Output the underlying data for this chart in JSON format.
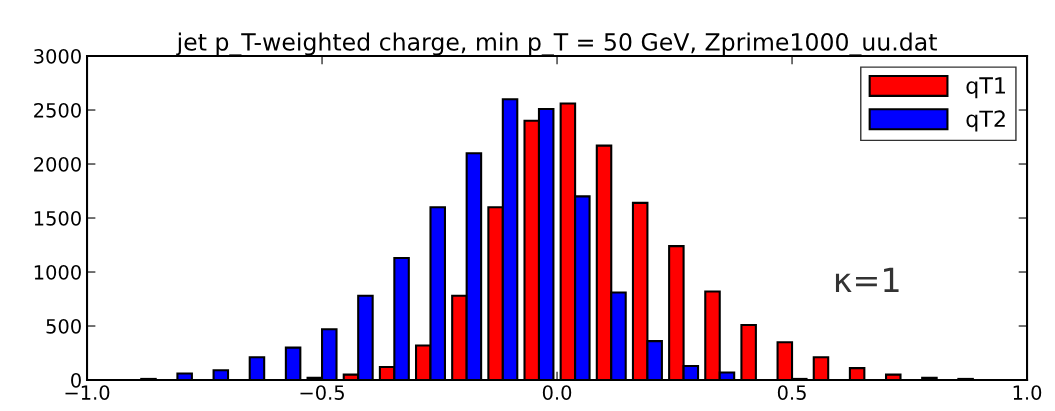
{
  "chart_data": {
    "type": "histogram",
    "title": "jet p_T-weighted charge, min p_T = 50 GeV, Zprime1000_uu.dat",
    "bins": [
      -1,
      -0.9231,
      -0.8462,
      -0.7692,
      -0.6923,
      -0.6154,
      -0.5385,
      -0.4615,
      -0.3846,
      -0.3077,
      -0.2308,
      -0.1538,
      -0.0769,
      0,
      0.0769,
      0.1538,
      0.2308,
      0.3077,
      0.3846,
      0.4615,
      0.5385,
      0.6154,
      0.6923,
      0.7692,
      0.8462,
      0.9231,
      1
    ],
    "series": [
      {
        "name": "qT1",
        "color": "#ff0000",
        "values": [
          0,
          0,
          0,
          0,
          0,
          null,
          20,
          50,
          120,
          320,
          780,
          1600,
          2400,
          2560,
          2170,
          1640,
          1240,
          820,
          510,
          350,
          210,
          110,
          50,
          20,
          10,
          0
        ]
      },
      {
        "name": "qT2",
        "color": "#0000ff",
        "values": [
          0,
          10,
          60,
          90,
          210,
          300,
          470,
          780,
          1130,
          1600,
          2100,
          2600,
          2510,
          1700,
          810,
          360,
          130,
          70,
          null,
          10,
          0,
          0,
          0,
          0,
          0,
          0
        ]
      }
    ],
    "xlim": [
      -1,
      1
    ],
    "ylim": [
      0,
      3000
    ],
    "xticks": [
      {
        "value": -1,
        "label": "−1.0"
      },
      {
        "value": -0.5,
        "label": "−0.5"
      },
      {
        "value": 0,
        "label": "0.0"
      },
      {
        "value": 0.5,
        "label": "0.5"
      },
      {
        "value": 1,
        "label": "1.0"
      }
    ],
    "yticks": [
      0,
      500,
      1000,
      1500,
      2000,
      2500,
      3000
    ],
    "annotations": [
      "κ=1"
    ],
    "legend": "top right",
    "grid": false
  }
}
